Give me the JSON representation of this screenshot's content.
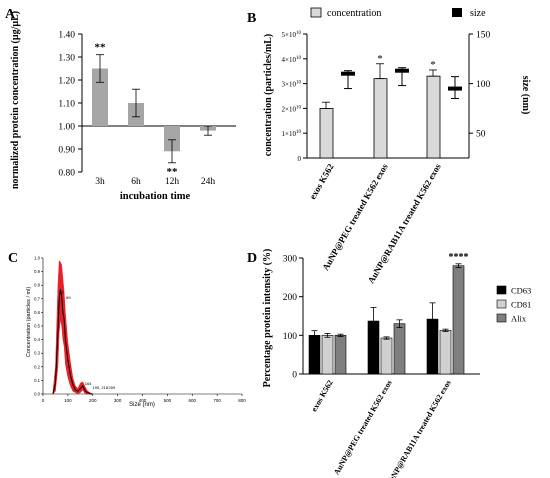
{
  "chart_data": [
    {
      "panel": "A",
      "type": "bar",
      "xlabel": "incubation time",
      "ylabel": "normalized protein concentration (µg/µL)",
      "categories": [
        "3h",
        "6h",
        "12h",
        "24h"
      ],
      "values": [
        1.25,
        1.1,
        0.89,
        0.98
      ],
      "errors": [
        0.06,
        0.06,
        0.05,
        0.02
      ],
      "significance": [
        "**",
        "",
        "**",
        ""
      ],
      "ylim": [
        0.8,
        1.4
      ],
      "yticks": [
        "0.80",
        "0.90",
        "1.00",
        "1.10",
        "1.20",
        "1.30",
        "1.40"
      ],
      "baseline": 1.0,
      "bar_color": "#a6a6a6"
    },
    {
      "panel": "B",
      "type": "bar",
      "categories": [
        "exos K562",
        "AuNP@PEG treated K562 exos",
        "AuNP@RAB11A treated K562 exos"
      ],
      "legend": [
        "concentration",
        "size"
      ],
      "ylabel_left": "concentration (particles/mL)",
      "ylabel_right": "size (nm)",
      "left_ticks": [
        {
          "base": "0",
          "exp": ""
        },
        {
          "base": "1×10",
          "exp": "10"
        },
        {
          "base": "2×10",
          "exp": "10"
        },
        {
          "base": "3×10",
          "exp": "10"
        },
        {
          "base": "4×10",
          "exp": "10"
        },
        {
          "base": "5×10",
          "exp": "10"
        }
      ],
      "right_ticks": [
        "50",
        "100",
        "150"
      ],
      "ylim_left": [
        0,
        50000000000.0
      ],
      "ylim_right": [
        25,
        150
      ],
      "concentration": [
        20000000000.0,
        32000000000.0,
        33000000000.0
      ],
      "concentration_err": [
        2500000000.0,
        6000000000.0,
        2500000000.0
      ],
      "size_median": [
        110,
        113,
        95
      ],
      "size_min": [
        95,
        98,
        85
      ],
      "size_max": [
        113,
        116,
        107
      ],
      "significance": [
        "",
        "*",
        "*"
      ]
    },
    {
      "panel": "C",
      "type": "line",
      "ylabel": "Concentration (particles / ml)",
      "xlabel": "Size (nm)",
      "xlim": [
        0,
        800
      ],
      "ylim": [
        0,
        1.0
      ],
      "xticks": [
        "0",
        "100",
        "200",
        "300",
        "400",
        "500",
        "600",
        "700",
        "800"
      ],
      "yticks": [
        "0.0",
        "0.1",
        "0.2",
        "0.3",
        "0.4",
        "0.5",
        "0.6",
        "0.7",
        "0.8",
        "0.9",
        "1.0"
      ],
      "mean_x": [
        40,
        50,
        60,
        65,
        70,
        75,
        80,
        85,
        90,
        100,
        110,
        120,
        130,
        140,
        150,
        160,
        170,
        180,
        190,
        200
      ],
      "mean_y": [
        0.0,
        0.08,
        0.45,
        0.7,
        0.77,
        0.72,
        0.6,
        0.55,
        0.4,
        0.25,
        0.14,
        0.07,
        0.03,
        0.02,
        0.04,
        0.06,
        0.02,
        0.01,
        0.0,
        0.0
      ],
      "band_upper": [
        0.02,
        0.2,
        0.8,
        0.98,
        0.97,
        0.95,
        0.85,
        0.75,
        0.6,
        0.38,
        0.24,
        0.12,
        0.06,
        0.04,
        0.08,
        0.09,
        0.05,
        0.02,
        0.01,
        0.0
      ],
      "band_lower": [
        0.0,
        0.02,
        0.2,
        0.45,
        0.55,
        0.5,
        0.4,
        0.35,
        0.22,
        0.12,
        0.06,
        0.02,
        0.01,
        0.0,
        0.01,
        0.03,
        0.0,
        0.0,
        0.0,
        0.0
      ],
      "annotations": [
        {
          "label": "62",
          "x": 62,
          "y": 0.73
        },
        {
          "label": "89",
          "x": 89,
          "y": 0.69
        },
        {
          "label": "164",
          "x": 164,
          "y": 0.06
        },
        {
          "label": "195, 218",
          "x": 195,
          "y": 0.03
        },
        {
          "label": "259",
          "x": 259,
          "y": 0.03
        }
      ],
      "band_color": "#e8141c",
      "line_color": "#000000"
    },
    {
      "panel": "D",
      "type": "bar",
      "ylabel": "Percentage protein intensity (%)",
      "categories": [
        "exos K562",
        "AuNP@PEG treated K562 exos",
        "AuNP@RAB11A treated K562 exos"
      ],
      "series": [
        {
          "name": "CD63",
          "values": [
            100,
            137,
            142
          ],
          "errors": [
            12,
            35,
            42
          ],
          "color": "#000000"
        },
        {
          "name": "CD81",
          "values": [
            100,
            93,
            113
          ],
          "errors": [
            5,
            3,
            3
          ],
          "color": "#d0d0d0"
        },
        {
          "name": "Alix",
          "values": [
            100,
            130,
            280
          ],
          "errors": [
            3,
            10,
            5
          ],
          "color": "#7f7f7f"
        }
      ],
      "ylim": [
        0,
        300
      ],
      "yticks": [
        "0",
        "100",
        "200",
        "300"
      ],
      "significance": {
        "series": "Alix",
        "category": 2,
        "label": "****"
      }
    }
  ],
  "panel_labels": [
    "A",
    "B",
    "C",
    "D"
  ]
}
